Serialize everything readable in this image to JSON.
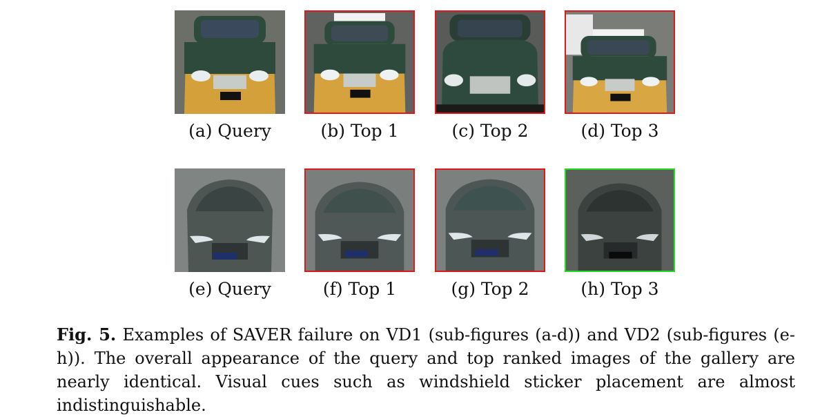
{
  "colors": {
    "wrong_match_border": "#e01818",
    "correct_match_border": "#22dd22"
  },
  "rows": [
    {
      "panels": [
        {
          "label": "(a) Query",
          "match": "query",
          "image": "green-yellow-taxi-front-icon"
        },
        {
          "label": "(b) Top 1",
          "match": "wrong",
          "image": "green-yellow-taxi-front-icon"
        },
        {
          "label": "(c) Top 2",
          "match": "wrong",
          "image": "green-yellow-taxi-front-icon"
        },
        {
          "label": "(d) Top 3",
          "match": "wrong",
          "image": "green-yellow-taxi-front-icon"
        }
      ]
    },
    {
      "panels": [
        {
          "label": "(e) Query",
          "match": "query",
          "image": "gray-hatchback-front-icon"
        },
        {
          "label": "(f) Top 1",
          "match": "wrong",
          "image": "gray-hatchback-front-icon"
        },
        {
          "label": "(g) Top 2",
          "match": "wrong",
          "image": "gray-hatchback-front-icon"
        },
        {
          "label": "(h) Top 3",
          "match": "correct",
          "image": "gray-hatchback-front-icon"
        }
      ]
    }
  ],
  "caption": {
    "label": "Fig. 5.",
    "text": "Examples of SAVER failure on VD1 (sub-figures (a-d)) and VD2 (sub-figures (e-h)). The overall appearance of the query and top ranked images of the gallery are nearly identical. Visual cues such as windshield sticker placement are almost indistinguishable."
  }
}
